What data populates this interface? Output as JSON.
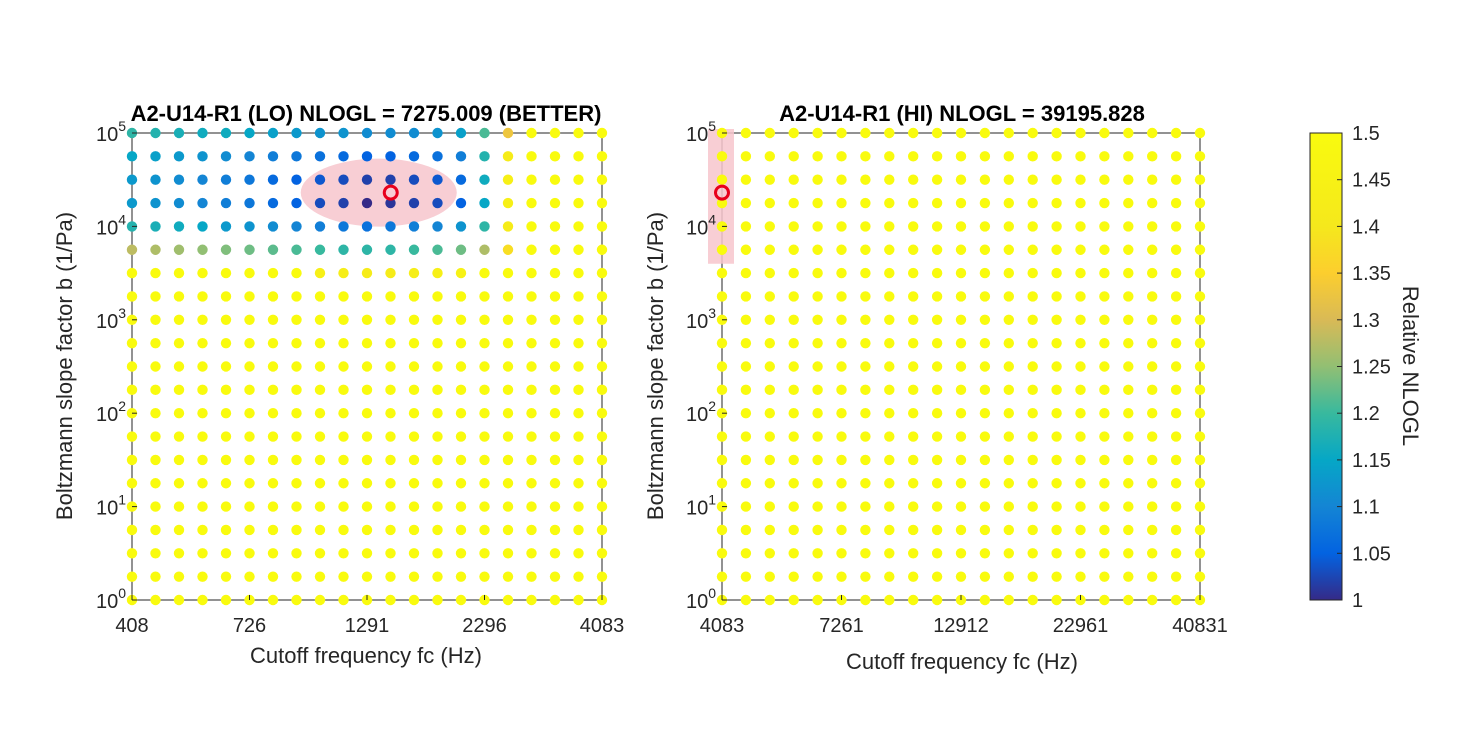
{
  "chart_data": [
    {
      "type": "scatter",
      "title": "A2-U14-R1 (LO) NLOGL = 7275.009 (BETTER)",
      "xlabel": "Cutoff frequency fc (Hz)",
      "ylabel": "Boltzmann slope factor b (1/Pa)",
      "x_scale": "log",
      "y_scale": "log",
      "xlim": [
        408,
        4083
      ],
      "ylim": [
        1,
        100000
      ],
      "x_ticks": [
        "408",
        "726",
        "1291",
        "2296",
        "4083"
      ],
      "y_ticks": [
        {
          "base": "10",
          "exp": "0"
        },
        {
          "base": "10",
          "exp": "1"
        },
        {
          "base": "10",
          "exp": "2"
        },
        {
          "base": "10",
          "exp": "3"
        },
        {
          "base": "10",
          "exp": "4"
        },
        {
          "base": "10",
          "exp": "5"
        }
      ],
      "grid": {
        "x_points": 21,
        "y_points": 21
      },
      "best": {
        "fc": 1450,
        "b": 23000
      },
      "nlogl": 7275.009,
      "default_relative_nlogl": 1.5,
      "relative_nlogl_rows": [
        {
          "b": 100000,
          "values": [
            1.19,
            1.18,
            1.17,
            1.16,
            1.16,
            1.15,
            1.14,
            1.13,
            1.12,
            1.12,
            1.11,
            1.11,
            1.11,
            1.12,
            1.14,
            1.21,
            1.33
          ]
        },
        {
          "b": 56234,
          "values": [
            1.15,
            1.14,
            1.13,
            1.12,
            1.11,
            1.1,
            1.09,
            1.08,
            1.07,
            1.06,
            1.05,
            1.05,
            1.06,
            1.07,
            1.09,
            1.18,
            1.42
          ]
        },
        {
          "b": 31623,
          "values": [
            1.13,
            1.12,
            1.11,
            1.1,
            1.09,
            1.08,
            1.06,
            1.05,
            1.04,
            1.03,
            1.02,
            1.02,
            1.03,
            1.04,
            1.06,
            1.16,
            1.44
          ]
        },
        {
          "b": 17783,
          "values": [
            1.13,
            1.12,
            1.11,
            1.1,
            1.09,
            1.08,
            1.06,
            1.05,
            1.03,
            1.02,
            1.0,
            1.01,
            1.02,
            1.03,
            1.05,
            1.15,
            1.44
          ]
        },
        {
          "b": 10000,
          "values": [
            1.18,
            1.17,
            1.16,
            1.15,
            1.13,
            1.12,
            1.11,
            1.1,
            1.09,
            1.08,
            1.07,
            1.08,
            1.09,
            1.1,
            1.12,
            1.19,
            1.42
          ]
        },
        {
          "b": 5623,
          "values": [
            1.28,
            1.27,
            1.26,
            1.25,
            1.24,
            1.23,
            1.22,
            1.21,
            1.2,
            1.19,
            1.19,
            1.19,
            1.2,
            1.21,
            1.23,
            1.27,
            1.38
          ]
        },
        {
          "b": 3162,
          "values": [
            1.5,
            1.5,
            1.5,
            1.5,
            1.5,
            1.5,
            1.5,
            1.5,
            1.44,
            1.43,
            1.42,
            1.42,
            1.43,
            1.44,
            1.45,
            1.5,
            1.5
          ]
        }
      ]
    },
    {
      "type": "scatter",
      "title": "A2-U14-R1 (HI) NLOGL = 39195.828",
      "xlabel": "Cutoff frequency fc (Hz)",
      "ylabel": "Boltzmann slope factor b (1/Pa)",
      "x_scale": "log",
      "y_scale": "log",
      "xlim": [
        4083,
        40831
      ],
      "ylim": [
        1,
        100000
      ],
      "x_ticks": [
        "4083",
        "7261",
        "12912",
        "22961",
        "40831"
      ],
      "y_ticks": [
        {
          "base": "10",
          "exp": "0"
        },
        {
          "base": "10",
          "exp": "1"
        },
        {
          "base": "10",
          "exp": "2"
        },
        {
          "base": "10",
          "exp": "3"
        },
        {
          "base": "10",
          "exp": "4"
        },
        {
          "base": "10",
          "exp": "5"
        }
      ],
      "grid": {
        "x_points": 21,
        "y_points": 21
      },
      "best": {
        "fc": 4083,
        "b": 23000
      },
      "nlogl": 39195.828,
      "default_relative_nlogl": 1.5
    }
  ],
  "colorbar": {
    "label": "Relative NLOGL",
    "min": 1,
    "max": 1.5,
    "ticks": [
      "1",
      "1.05",
      "1.1",
      "1.15",
      "1.2",
      "1.25",
      "1.3",
      "1.35",
      "1.4",
      "1.45",
      "1.5"
    ],
    "colormap": "parula"
  },
  "colors": {
    "best_marker": "#e8001c",
    "best_region": "#f7c6cc",
    "axis": "#262626"
  }
}
